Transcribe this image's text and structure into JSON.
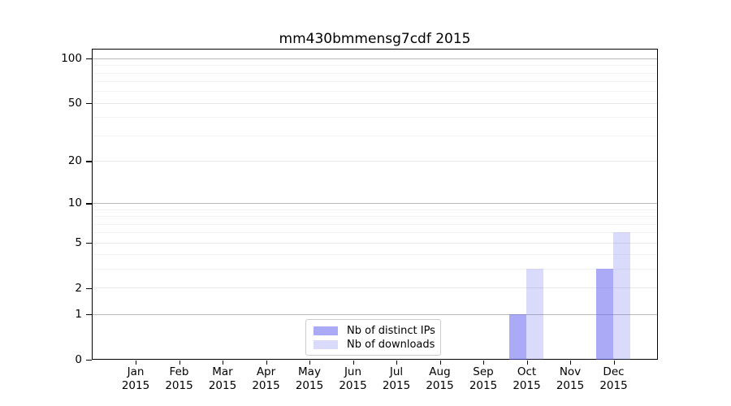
{
  "chart_data": {
    "type": "bar",
    "title": "mm430bmmensg7cdf 2015",
    "categories": [
      "Jan",
      "Feb",
      "Mar",
      "Apr",
      "May",
      "Jun",
      "Jul",
      "Aug",
      "Sep",
      "Oct",
      "Nov",
      "Dec"
    ],
    "category_year": "2015",
    "series": [
      {
        "name": "Nb of distinct IPs",
        "values": [
          0,
          0,
          0,
          0,
          0,
          0,
          0,
          0,
          0,
          1,
          0,
          3
        ],
        "color": "rgba(100,100,240,0.55)"
      },
      {
        "name": "Nb of downloads",
        "values": [
          0,
          0,
          0,
          0,
          0,
          0,
          0,
          0,
          0,
          3,
          0,
          6
        ],
        "color": "rgba(100,100,240,0.24)"
      }
    ],
    "yaxis": {
      "scale": "log1p",
      "ticks": [
        0,
        1,
        2,
        5,
        10,
        20,
        50,
        100
      ],
      "ymin": 0,
      "ymax": 115,
      "emphasized_gridlines": [
        1,
        10,
        100
      ],
      "major_gridlines": [
        2,
        5,
        20,
        50
      ],
      "minor_gridlines": [
        3,
        4,
        6,
        7,
        8,
        9,
        30,
        40,
        60,
        70,
        80,
        90
      ]
    },
    "legend": {
      "position": "lower-center",
      "entries": [
        "Nb of distinct IPs",
        "Nb of downloads"
      ]
    },
    "colors": {
      "bar_base": "#6464f0",
      "grid_emphasized": "#bbbbbb",
      "grid_major": "#e8e8e8",
      "grid_minor": "#f3f3f3",
      "spine": "#000000",
      "text": "#000000",
      "background": "#ffffff"
    }
  }
}
